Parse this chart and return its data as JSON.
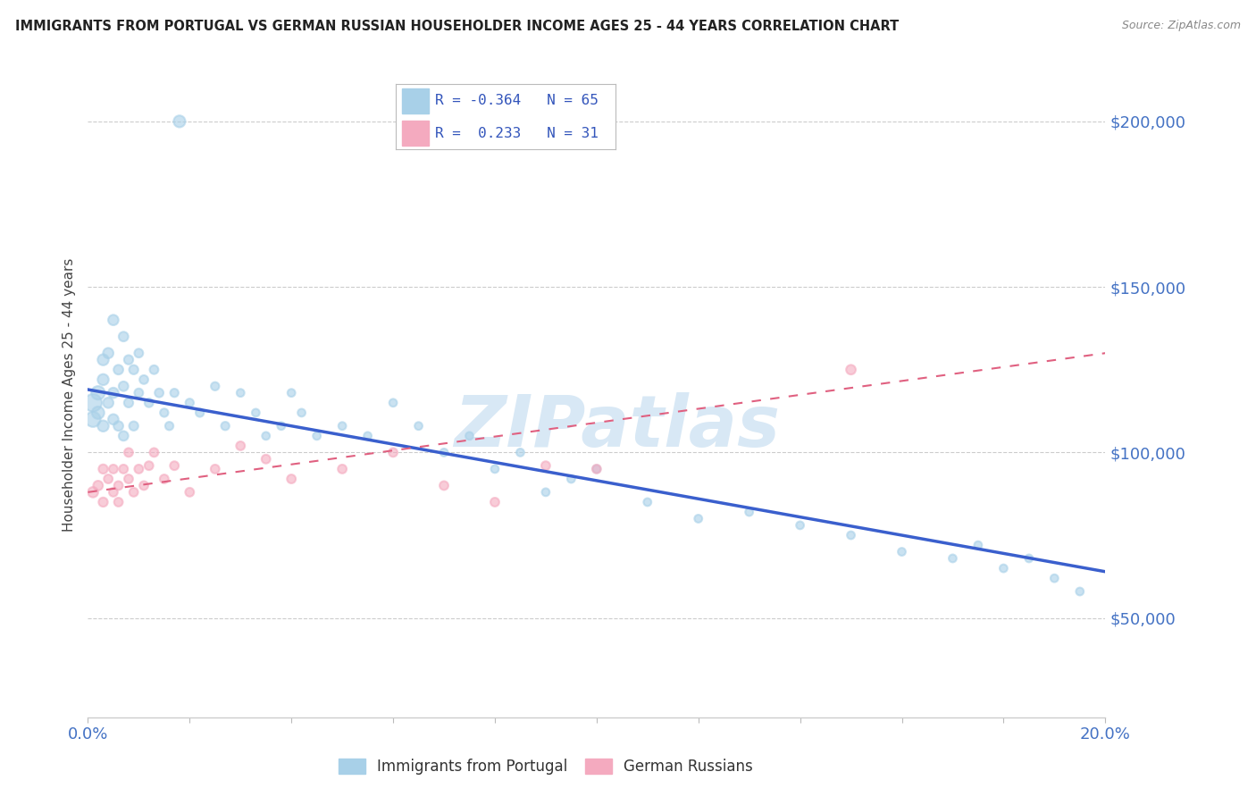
{
  "title": "IMMIGRANTS FROM PORTUGAL VS GERMAN RUSSIAN HOUSEHOLDER INCOME AGES 25 - 44 YEARS CORRELATION CHART",
  "source": "Source: ZipAtlas.com",
  "ylabel": "Householder Income Ages 25 - 44 years",
  "ytick_values": [
    50000,
    100000,
    150000,
    200000
  ],
  "ymin": 20000,
  "ymax": 215000,
  "xmin": 0.0,
  "xmax": 0.2,
  "color_portugal": "#A8D0E8",
  "color_german": "#F4AABF",
  "color_portugal_line": "#3A5FCD",
  "color_german_line": "#E06080",
  "watermark_color": "#D8E8F5",
  "portugal_x": [
    0.001,
    0.001,
    0.002,
    0.002,
    0.003,
    0.003,
    0.003,
    0.004,
    0.004,
    0.005,
    0.005,
    0.005,
    0.006,
    0.006,
    0.007,
    0.007,
    0.007,
    0.008,
    0.008,
    0.009,
    0.009,
    0.01,
    0.01,
    0.011,
    0.012,
    0.013,
    0.014,
    0.015,
    0.016,
    0.017,
    0.018,
    0.02,
    0.022,
    0.025,
    0.027,
    0.03,
    0.033,
    0.035,
    0.038,
    0.04,
    0.042,
    0.045,
    0.05,
    0.055,
    0.06,
    0.065,
    0.07,
    0.075,
    0.08,
    0.085,
    0.09,
    0.095,
    0.1,
    0.11,
    0.12,
    0.13,
    0.14,
    0.15,
    0.16,
    0.17,
    0.175,
    0.18,
    0.185,
    0.19,
    0.195
  ],
  "portugal_y": [
    115000,
    110000,
    118000,
    112000,
    128000,
    122000,
    108000,
    130000,
    115000,
    140000,
    118000,
    110000,
    125000,
    108000,
    135000,
    120000,
    105000,
    128000,
    115000,
    125000,
    108000,
    130000,
    118000,
    122000,
    115000,
    125000,
    118000,
    112000,
    108000,
    118000,
    200000,
    115000,
    112000,
    120000,
    108000,
    118000,
    112000,
    105000,
    108000,
    118000,
    112000,
    105000,
    108000,
    105000,
    115000,
    108000,
    100000,
    105000,
    95000,
    100000,
    88000,
    92000,
    95000,
    85000,
    80000,
    82000,
    78000,
    75000,
    70000,
    68000,
    72000,
    65000,
    68000,
    62000,
    58000
  ],
  "portugal_sizes": [
    200,
    150,
    120,
    100,
    80,
    80,
    80,
    70,
    70,
    70,
    70,
    70,
    60,
    60,
    60,
    60,
    60,
    55,
    55,
    55,
    55,
    50,
    50,
    50,
    50,
    50,
    50,
    45,
    45,
    45,
    90,
    45,
    45,
    45,
    45,
    40,
    40,
    40,
    40,
    40,
    40,
    40,
    40,
    40,
    40,
    40,
    40,
    40,
    40,
    40,
    40,
    40,
    40,
    40,
    40,
    40,
    40,
    40,
    40,
    40,
    40,
    40,
    40,
    40,
    40
  ],
  "german_x": [
    0.001,
    0.002,
    0.003,
    0.003,
    0.004,
    0.005,
    0.005,
    0.006,
    0.006,
    0.007,
    0.008,
    0.008,
    0.009,
    0.01,
    0.011,
    0.012,
    0.013,
    0.015,
    0.017,
    0.02,
    0.025,
    0.03,
    0.035,
    0.04,
    0.05,
    0.06,
    0.07,
    0.08,
    0.09,
    0.1,
    0.15
  ],
  "german_y": [
    88000,
    90000,
    95000,
    85000,
    92000,
    88000,
    95000,
    90000,
    85000,
    95000,
    100000,
    92000,
    88000,
    95000,
    90000,
    96000,
    100000,
    92000,
    96000,
    88000,
    95000,
    102000,
    98000,
    92000,
    95000,
    100000,
    90000,
    85000,
    96000,
    95000,
    125000
  ],
  "german_sizes": [
    70,
    60,
    55,
    55,
    50,
    50,
    50,
    50,
    50,
    50,
    50,
    50,
    50,
    50,
    50,
    50,
    50,
    50,
    50,
    50,
    50,
    50,
    50,
    50,
    50,
    50,
    50,
    50,
    50,
    50,
    60
  ]
}
